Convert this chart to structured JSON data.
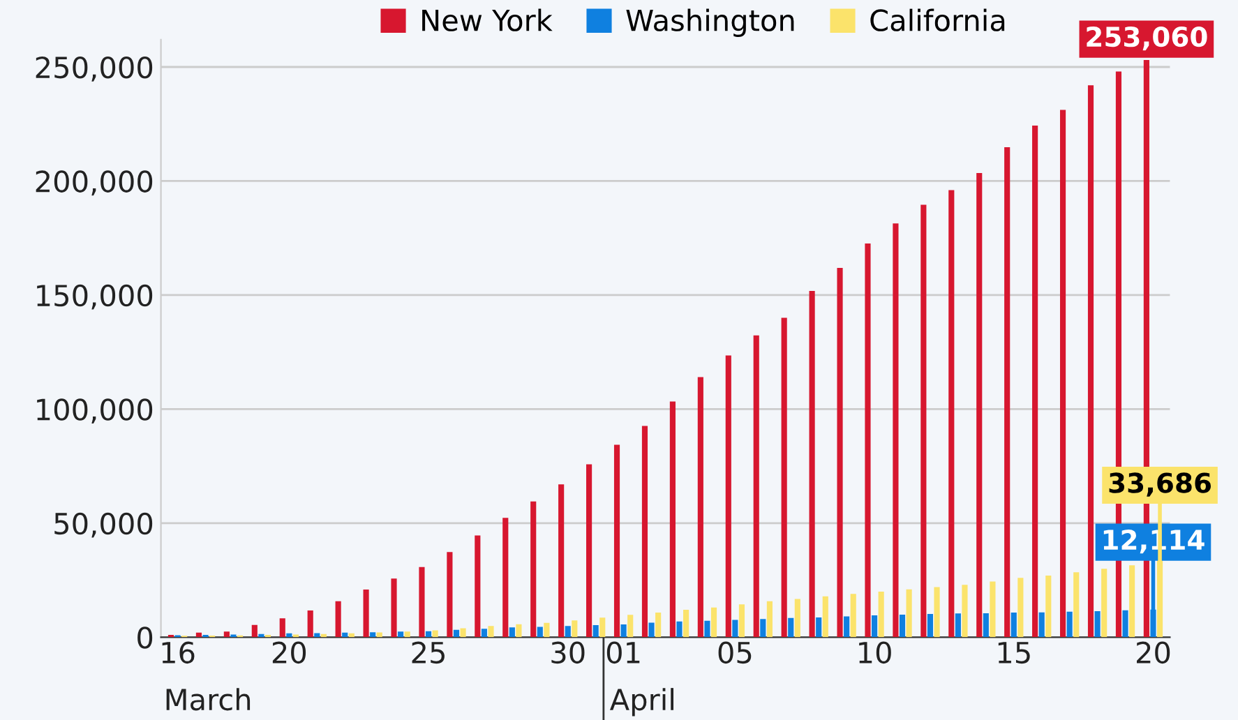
{
  "chart_data": {
    "type": "bar",
    "categories": [
      "16",
      null,
      null,
      null,
      "20",
      null,
      null,
      null,
      null,
      "25",
      null,
      null,
      null,
      null,
      "30",
      null,
      "01",
      null,
      null,
      null,
      "05",
      null,
      null,
      null,
      null,
      "10",
      null,
      null,
      null,
      null,
      "15",
      null,
      null,
      null,
      null,
      "20"
    ],
    "series": [
      {
        "name": "New York",
        "color": "#d7172f",
        "values": [
          1000,
          2000,
          2500,
          5400,
          8300,
          11700,
          15800,
          20900,
          25700,
          30800,
          37300,
          44600,
          52300,
          59500,
          67000,
          75800,
          84400,
          92600,
          103300,
          114000,
          123500,
          132300,
          140000,
          151800,
          161900,
          172600,
          181400,
          189600,
          196000,
          203500,
          214800,
          224300,
          231200,
          242000,
          248000,
          253060
        ],
        "value_labels": [
          null,
          null,
          null,
          null,
          null,
          null,
          null,
          null,
          null,
          null,
          null,
          null,
          null,
          null,
          null,
          null,
          null,
          null,
          null,
          null,
          null,
          null,
          null,
          null,
          null,
          null,
          null,
          null,
          null,
          null,
          null,
          null,
          null,
          null,
          null,
          "253,060"
        ]
      },
      {
        "name": "Washington",
        "color": "#0f80e0",
        "values": [
          900,
          1000,
          1200,
          1400,
          1700,
          1800,
          2000,
          2200,
          2500,
          2600,
          3200,
          3700,
          4300,
          4500,
          4900,
          5300,
          5600,
          6400,
          6900,
          7200,
          7600,
          8000,
          8400,
          8700,
          9100,
          9600,
          9900,
          10200,
          10400,
          10500,
          10800,
          10900,
          11200,
          11400,
          11800,
          12114
        ],
        "value_labels": [
          null,
          null,
          null,
          null,
          null,
          null,
          null,
          null,
          null,
          null,
          null,
          null,
          null,
          null,
          null,
          null,
          null,
          null,
          null,
          null,
          null,
          null,
          null,
          null,
          null,
          null,
          null,
          null,
          null,
          null,
          null,
          null,
          null,
          null,
          null,
          "12,114"
        ]
      },
      {
        "name": "California",
        "color": "#fbe36b",
        "values": [
          600,
          700,
          800,
          1000,
          1200,
          1400,
          1700,
          2100,
          2500,
          3000,
          3900,
          4900,
          5700,
          6300,
          7400,
          8600,
          9800,
          10800,
          12000,
          13000,
          14400,
          15800,
          16800,
          17900,
          19000,
          20000,
          21000,
          22000,
          23000,
          24400,
          26000,
          27000,
          28500,
          30000,
          31500,
          33686
        ],
        "value_labels": [
          null,
          null,
          null,
          null,
          null,
          null,
          null,
          null,
          null,
          null,
          null,
          null,
          null,
          null,
          null,
          null,
          null,
          null,
          null,
          null,
          null,
          null,
          null,
          null,
          null,
          null,
          null,
          null,
          null,
          null,
          null,
          null,
          null,
          null,
          null,
          "33,686"
        ]
      }
    ],
    "ylim": [
      0,
      262000
    ],
    "yticks": [
      {
        "value": 0,
        "label": "0"
      },
      {
        "value": 50000,
        "label": "50,000"
      },
      {
        "value": 100000,
        "label": "100,000"
      },
      {
        "value": 150000,
        "label": "150,000"
      },
      {
        "value": 200000,
        "label": "200,000"
      },
      {
        "value": 250000,
        "label": "250,000"
      }
    ],
    "annotations": [
      "March",
      "April"
    ],
    "grid": "y",
    "legend": "top right"
  }
}
